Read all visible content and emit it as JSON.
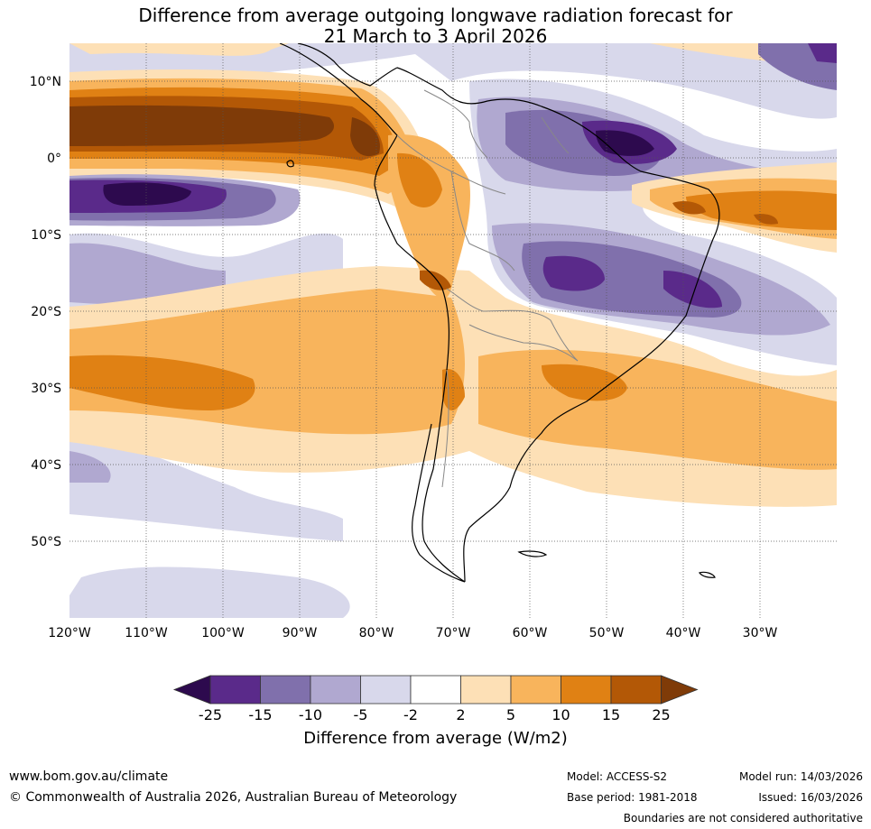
{
  "title": {
    "line1": "Difference from average outgoing longwave radiation forecast for",
    "line2": "21 March to 3 April 2026"
  },
  "map": {
    "lat_labels": [
      "10°N",
      "0°",
      "10°S",
      "20°S",
      "30°S",
      "40°S",
      "50°S"
    ],
    "lon_labels": [
      "120°W",
      "110°W",
      "100°W",
      "90°W",
      "80°W",
      "70°W",
      "60°W",
      "50°W",
      "40°W",
      "30°W"
    ]
  },
  "colorbar": {
    "ticks": [
      "-25",
      "-15",
      "-10",
      "-5",
      "-2",
      "2",
      "5",
      "10",
      "15",
      "25"
    ],
    "colors": [
      "#2d0a4e",
      "#5a2a8a",
      "#8070ac",
      "#b0a8d0",
      "#d8d8eb",
      "#ffffff",
      "#fde0b6",
      "#f8b45c",
      "#e08114",
      "#b35806",
      "#7f3b08"
    ],
    "label": "Difference from average (W/m2)"
  },
  "footer": {
    "website": "www.bom.gov.au/climate",
    "copyright": "© Commonwealth of Australia 2026, Australian Bureau of Meteorology",
    "model": "Model: ACCESS-S2",
    "base_period": "Base period: 1981-2018",
    "model_run": "Model run: 14/03/2026",
    "issued": "Issued: 16/03/2026",
    "disclaimer": "Boundaries are not considered authoritative"
  }
}
